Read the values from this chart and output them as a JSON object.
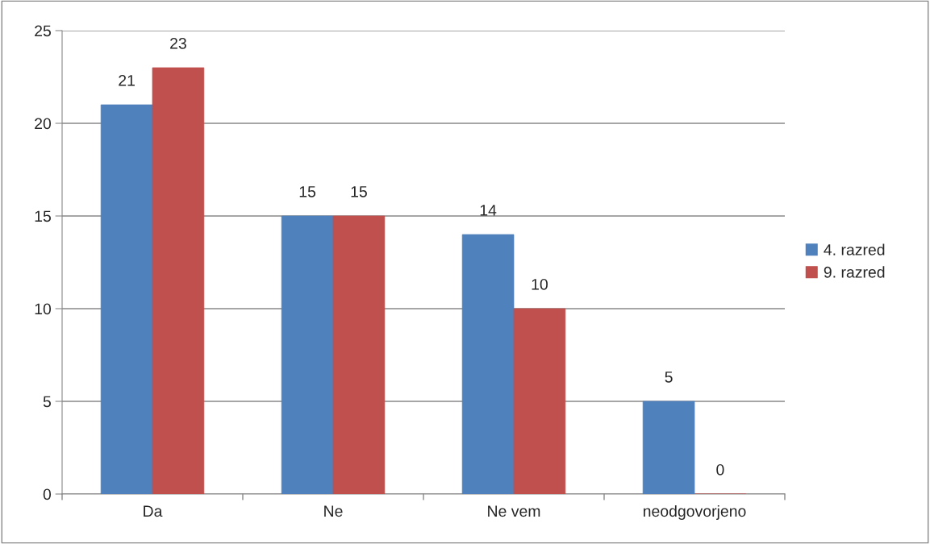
{
  "chart_data": {
    "type": "bar",
    "categories": [
      "Da",
      "Ne",
      "Ne vem",
      "neodgovorjeno"
    ],
    "series": [
      {
        "name": "4. razred",
        "color": "#4f81bd",
        "values": [
          21,
          15,
          14,
          5
        ]
      },
      {
        "name": "9. razred",
        "color": "#c0504d",
        "values": [
          23,
          15,
          10,
          0
        ]
      }
    ],
    "ylim": [
      0,
      25
    ],
    "yticks": [
      0,
      5,
      10,
      15,
      20,
      25
    ],
    "grid": "y",
    "legend": "right",
    "data_labels": true
  }
}
